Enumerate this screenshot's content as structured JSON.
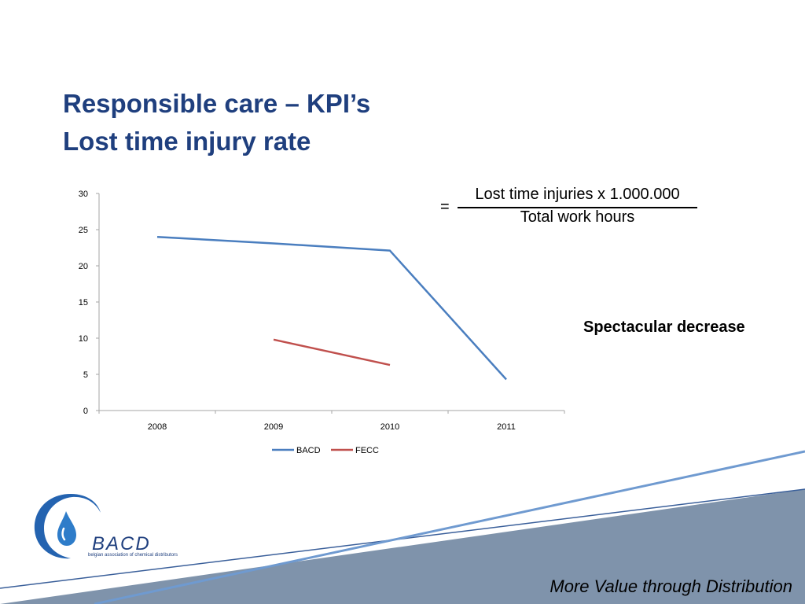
{
  "slide": {
    "title_line1": "Responsible care – KPI’s",
    "title_line2": "Lost time injury rate",
    "note": "Spectacular decrease",
    "tagline": "More Value through Distribution"
  },
  "formula": {
    "equals": "=",
    "numerator": "Lost time injuries x 1.000.000",
    "denominator": "Total work hours"
  },
  "logo": {
    "name": "BACD",
    "subtitle": "belgian association of chemical distributors"
  },
  "colors": {
    "title": "#1f3f7e",
    "bacd": "#4a7ebf",
    "fecc": "#c0504d",
    "band": "#7f93ab"
  },
  "chart_data": {
    "type": "line",
    "categories": [
      "2008",
      "2009",
      "2010",
      "2011"
    ],
    "series": [
      {
        "name": "BACD",
        "values": [
          24,
          23.1,
          22.1,
          4.3
        ]
      },
      {
        "name": "FECC",
        "values": [
          null,
          9.8,
          6.3,
          null
        ]
      }
    ],
    "yticks": [
      "0",
      "5",
      "10",
      "15",
      "20",
      "25",
      "30"
    ],
    "ylim": [
      0,
      30
    ],
    "legend_position": "bottom",
    "grid": false,
    "title": "",
    "xlabel": "",
    "ylabel": ""
  }
}
